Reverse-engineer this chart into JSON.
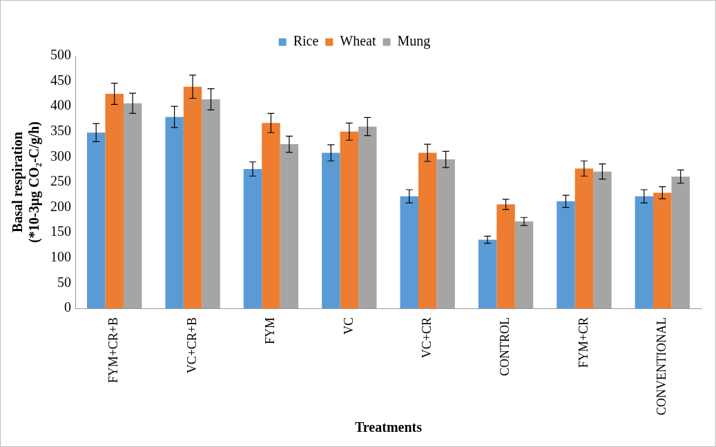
{
  "chart_data": {
    "type": "bar",
    "xlabel": "Treatments",
    "ylabel": "Basal respiration\n(*10-3µg CO₂-C/g/h)",
    "categories": [
      "FYM+CR+B",
      "VC+CR+B",
      "FYM",
      "VC",
      "VC+CR",
      "CONTROL",
      "FYM+CR",
      "CONVENTIONAL"
    ],
    "series": [
      {
        "name": "Rice",
        "color": "#5b9bd5",
        "values": [
          348,
          379,
          276,
          308,
          222,
          136,
          212,
          222
        ],
        "errors": [
          18,
          21,
          14,
          16,
          13,
          7,
          12,
          13
        ]
      },
      {
        "name": "Wheat",
        "color": "#ed7d31",
        "values": [
          425,
          439,
          367,
          350,
          308,
          206,
          277,
          229
        ],
        "errors": [
          21,
          23,
          19,
          17,
          17,
          10,
          15,
          12
        ]
      },
      {
        "name": "Mung",
        "color": "#a5a5a5",
        "values": [
          406,
          414,
          325,
          360,
          295,
          172,
          271,
          261
        ],
        "errors": [
          20,
          21,
          16,
          18,
          16,
          8,
          15,
          13
        ]
      }
    ],
    "ylim": [
      0,
      500
    ],
    "yticks": [
      0,
      50,
      100,
      150,
      200,
      250,
      300,
      350,
      400,
      450,
      500
    ],
    "grid": false,
    "legend": "top"
  }
}
